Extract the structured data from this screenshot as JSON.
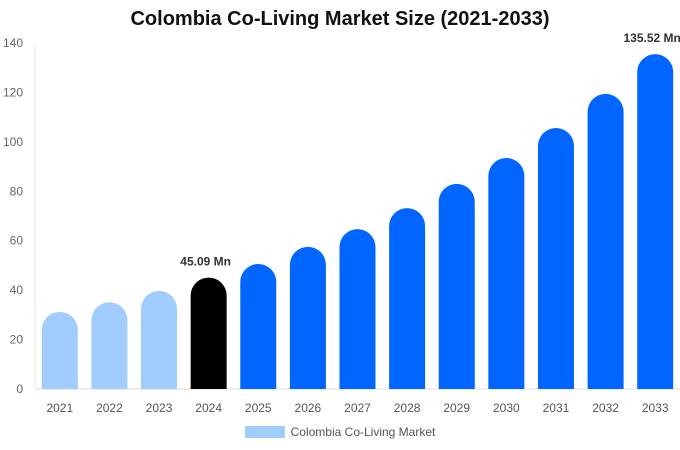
{
  "chart_data": {
    "type": "bar",
    "title": "Colombia Co-Living Market Size (2021-2033)",
    "categories": [
      "2021",
      "2022",
      "2023",
      "2024",
      "2025",
      "2026",
      "2027",
      "2028",
      "2029",
      "2030",
      "2031",
      "2032",
      "2033"
    ],
    "series": [
      {
        "name": "Colombia Co-Living Market",
        "values": [
          31.2,
          35.1,
          39.7,
          45.09,
          50.6,
          57.5,
          64.7,
          73.2,
          83.0,
          93.5,
          105.6,
          119.4,
          135.52
        ]
      }
    ],
    "ylim": [
      0,
      140
    ],
    "yticks": [
      0,
      20,
      40,
      60,
      80,
      100,
      120,
      140
    ],
    "grid": false,
    "legend_position": "bottom",
    "data_labels": [
      {
        "category": "2024",
        "text": "45.09 Mn"
      },
      {
        "category": "2033",
        "text": "135.52 Mn"
      }
    ],
    "colors": {
      "historic": "#a0cdfd",
      "current": "#000000",
      "forecast": "#0066ff",
      "legend": "#a0cdfd"
    }
  }
}
